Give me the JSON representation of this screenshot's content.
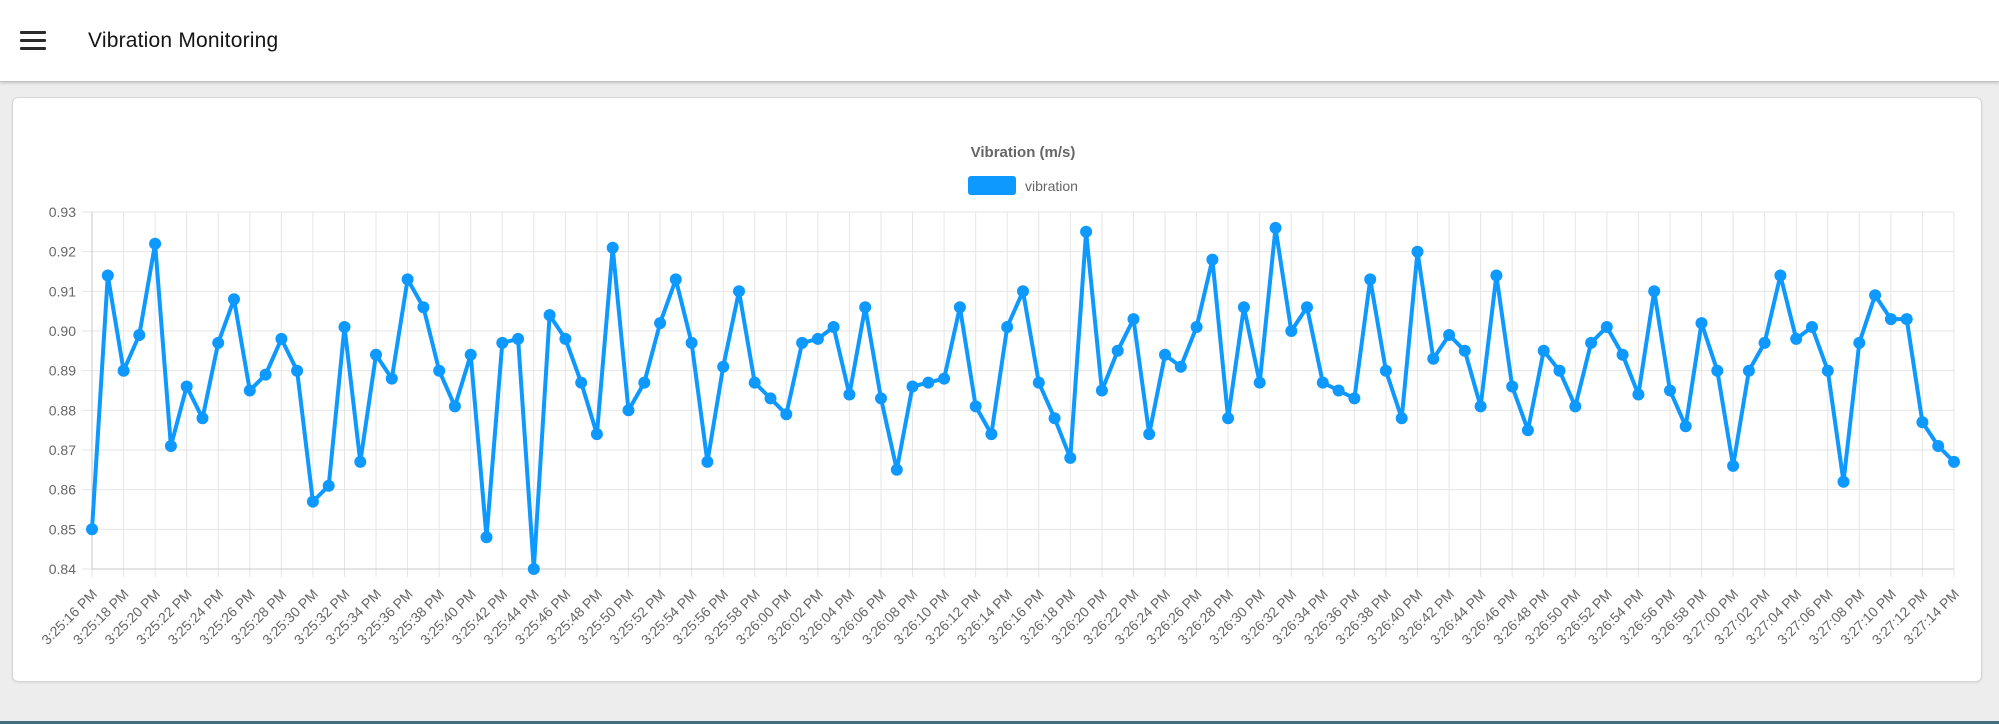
{
  "header": {
    "title": "Vibration Monitoring"
  },
  "chart": {
    "title": "Vibration (m/s)",
    "legend_label": "vibration",
    "accent_color": "#0d99ff",
    "grid_color": "#e6e6e6",
    "axis_color": "#c9c9c9",
    "tick_text_color": "#666666"
  },
  "chart_data": {
    "type": "line",
    "title": "Vibration (m/s)",
    "legend_position": "top",
    "grid": true,
    "ylabel": "",
    "xlabel": "",
    "ylim": [
      0.84,
      0.93
    ],
    "yticks": [
      "0.84",
      "0.85",
      "0.86",
      "0.87",
      "0.88",
      "0.89",
      "0.90",
      "0.91",
      "0.92",
      "0.93"
    ],
    "x_tick_labels": [
      "3:25:16 PM",
      "3:25:18 PM",
      "3:25:20 PM",
      "3:25:22 PM",
      "3:25:24 PM",
      "3:25:26 PM",
      "3:25:28 PM",
      "3:25:30 PM",
      "3:25:32 PM",
      "3:25:34 PM",
      "3:25:36 PM",
      "3:25:38 PM",
      "3:25:40 PM",
      "3:25:42 PM",
      "3:25:44 PM",
      "3:25:46 PM",
      "3:25:48 PM",
      "3:25:50 PM",
      "3:25:52 PM",
      "3:25:54 PM",
      "3:25:56 PM",
      "3:25:58 PM",
      "3:26:00 PM",
      "3:26:02 PM",
      "3:26:04 PM",
      "3:26:06 PM",
      "3:26:08 PM",
      "3:26:10 PM",
      "3:26:12 PM",
      "3:26:14 PM",
      "3:26:16 PM",
      "3:26:18 PM",
      "3:26:20 PM",
      "3:26:22 PM",
      "3:26:24 PM",
      "3:26:26 PM",
      "3:26:28 PM",
      "3:26:30 PM",
      "3:26:32 PM",
      "3:26:34 PM",
      "3:26:36 PM",
      "3:26:38 PM",
      "3:26:40 PM",
      "3:26:42 PM",
      "3:26:44 PM",
      "3:26:46 PM",
      "3:26:48 PM",
      "3:26:50 PM",
      "3:26:52 PM",
      "3:26:54 PM",
      "3:26:56 PM",
      "3:26:58 PM",
      "3:27:00 PM",
      "3:27:02 PM",
      "3:27:04 PM",
      "3:27:06 PM",
      "3:27:08 PM",
      "3:27:10 PM",
      "3:27:12 PM",
      "3:27:14 PM"
    ],
    "points_per_tick": 2,
    "series": [
      {
        "name": "vibration",
        "color": "#0d99ff",
        "values": [
          0.85,
          0.914,
          0.89,
          0.899,
          0.922,
          0.871,
          0.886,
          0.878,
          0.897,
          0.908,
          0.885,
          0.889,
          0.898,
          0.89,
          0.857,
          0.861,
          0.901,
          0.867,
          0.894,
          0.888,
          0.913,
          0.906,
          0.89,
          0.881,
          0.894,
          0.848,
          0.897,
          0.898,
          0.84,
          0.904,
          0.898,
          0.887,
          0.874,
          0.921,
          0.88,
          0.887,
          0.902,
          0.913,
          0.897,
          0.867,
          0.891,
          0.91,
          0.887,
          0.883,
          0.879,
          0.897,
          0.898,
          0.901,
          0.884,
          0.906,
          0.883,
          0.865,
          0.886,
          0.887,
          0.888,
          0.906,
          0.881,
          0.874,
          0.901,
          0.91,
          0.887,
          0.878,
          0.868,
          0.925,
          0.885,
          0.895,
          0.903,
          0.874,
          0.894,
          0.891,
          0.901,
          0.918,
          0.878,
          0.906,
          0.887,
          0.926,
          0.9,
          0.906,
          0.887,
          0.885,
          0.883,
          0.913,
          0.89,
          0.878,
          0.92,
          0.893,
          0.899,
          0.895,
          0.881,
          0.914,
          0.886,
          0.875,
          0.895,
          0.89,
          0.881,
          0.897,
          0.901,
          0.894,
          0.884,
          0.91,
          0.885,
          0.876,
          0.902,
          0.89,
          0.866,
          0.89,
          0.897,
          0.914,
          0.898,
          0.901,
          0.89,
          0.862,
          0.897,
          0.909,
          0.903,
          0.903,
          0.877,
          0.871,
          0.867
        ]
      }
    ]
  }
}
